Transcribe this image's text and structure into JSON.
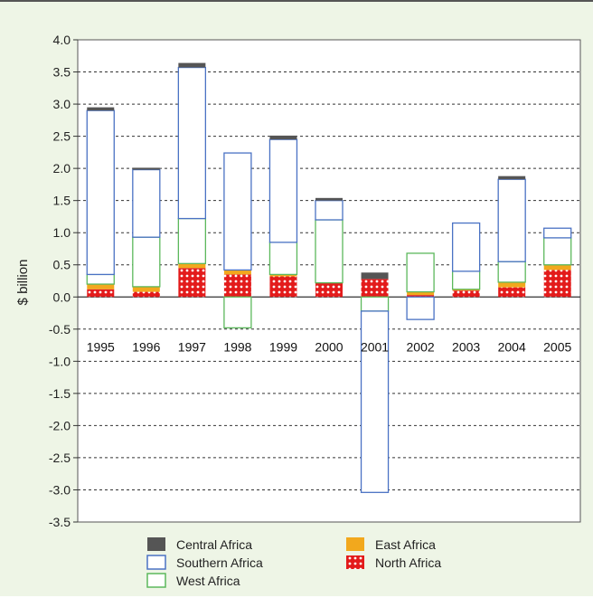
{
  "chart_data": {
    "type": "bar",
    "stacked": true,
    "title": "",
    "xlabel": "",
    "ylabel": "$ billion",
    "ylim": [
      -3.5,
      4.0
    ],
    "ytick_step": 0.5,
    "yticks": [
      "4.0",
      "3.5",
      "3.0",
      "2.5",
      "2.0",
      "1.5",
      "1.0",
      "0.5",
      "0.0",
      "-0.5",
      "-1.0",
      "-1.5",
      "-2.0",
      "-2.5",
      "-3.0",
      "-3.5"
    ],
    "grid": true,
    "legend_position": "bottom",
    "categories": [
      "1995",
      "1996",
      "1997",
      "1998",
      "1999",
      "2000",
      "2001",
      "2002",
      "2003",
      "2004",
      "2005"
    ],
    "series": [
      {
        "name": "North Africa",
        "color": "#e31b1b",
        "pattern": "dots",
        "values": [
          0.12,
          0.08,
          0.45,
          0.35,
          0.32,
          0.22,
          0.28,
          0.03,
          0.1,
          0.15,
          0.42
        ]
      },
      {
        "name": "East Africa",
        "color": "#f2a81d",
        "values": [
          0.08,
          0.08,
          0.07,
          0.07,
          0.03,
          0.0,
          0.0,
          0.05,
          0.02,
          0.08,
          0.08
        ]
      },
      {
        "name": "West Africa",
        "color": "#5cb85c",
        "outline": true,
        "values": [
          0.15,
          0.77,
          0.7,
          -0.48,
          0.5,
          0.98,
          -0.22,
          0.6,
          0.28,
          0.32,
          0.42
        ]
      },
      {
        "name": "Southern Africa",
        "color": "#4a72c4",
        "outline": true,
        "values": [
          2.55,
          1.05,
          2.35,
          1.82,
          1.6,
          0.3,
          -2.82,
          -0.35,
          0.75,
          1.28,
          0.15
        ]
      },
      {
        "name": "Central Africa",
        "color": "#555555",
        "values": [
          0.05,
          0.03,
          0.07,
          0.0,
          0.06,
          0.04,
          0.1,
          0.0,
          0.0,
          0.05,
          0.0
        ]
      }
    ],
    "legend": [
      {
        "name": "Central Africa",
        "swatch": "solid",
        "color": "#555555"
      },
      {
        "name": "East Africa",
        "swatch": "solid",
        "color": "#f2a81d"
      },
      {
        "name": "Southern Africa",
        "swatch": "outline",
        "color": "#4a72c4"
      },
      {
        "name": "North Africa",
        "swatch": "dots",
        "color": "#e31b1b"
      },
      {
        "name": "West Africa",
        "swatch": "outline",
        "color": "#5cb85c"
      }
    ]
  }
}
